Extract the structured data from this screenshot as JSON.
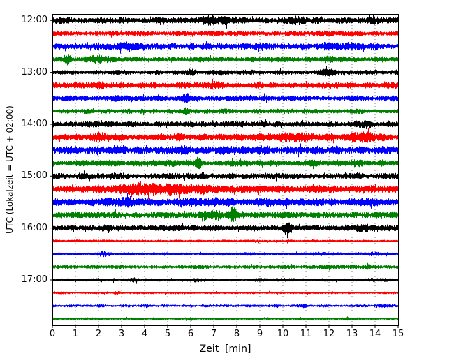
{
  "chart_data": {
    "type": "line",
    "subtype": "seismogram-dayplot-helicorder",
    "title": "",
    "xlabel": "Zeit  [min]",
    "ylabel": "UTC (Lokalzeit = UTC + 02:00)",
    "xlim": [
      0,
      15
    ],
    "minutes_per_trace": 15,
    "x_ticks": [
      "0",
      "1",
      "2",
      "3",
      "4",
      "5",
      "6",
      "7",
      "8",
      "9",
      "10",
      "11",
      "12",
      "13",
      "14",
      "15"
    ],
    "grid": {
      "vertical": "dotted",
      "every_minute": true
    },
    "legend": "none",
    "color_cycle": [
      "#000000",
      "#ff0000",
      "#0000ff",
      "#008000"
    ],
    "hour_tick_labels": [
      "12:00",
      "13:00",
      "14:00",
      "15:00",
      "16:00",
      "17:00"
    ],
    "traces": [
      {
        "start": "12:00",
        "label": "12:00",
        "color": "#000000",
        "amp": 0.5,
        "bursts": [
          [
            7,
            1.5,
            1.5
          ],
          [
            10.5,
            1,
            1.4
          ],
          [
            14,
            1,
            1.3
          ]
        ]
      },
      {
        "start": "12:15",
        "label": "",
        "color": "#ff0000",
        "amp": 0.38,
        "bursts": [
          [
            11.5,
            1,
            1.3
          ]
        ]
      },
      {
        "start": "12:30",
        "label": "",
        "color": "#0000ff",
        "amp": 0.5,
        "bursts": [
          [
            3.5,
            2,
            1.5
          ],
          [
            9,
            1.5,
            1.4
          ],
          [
            12.5,
            1.5,
            1.5
          ]
        ]
      },
      {
        "start": "12:45",
        "label": "",
        "color": "#008000",
        "amp": 0.42,
        "bursts": [
          [
            0.6,
            0.3,
            2.8
          ],
          [
            2,
            0.8,
            2.0
          ],
          [
            12,
            1,
            1.3
          ]
        ]
      },
      {
        "start": "13:00",
        "label": "13:00",
        "color": "#000000",
        "amp": 0.38,
        "bursts": [
          [
            6,
            0.5,
            1.5
          ],
          [
            12,
            0.8,
            2.2
          ]
        ]
      },
      {
        "start": "13:15",
        "label": "",
        "color": "#ff0000",
        "amp": 0.45,
        "bursts": [
          [
            1.8,
            0.8,
            1.6
          ],
          [
            5.5,
            0.5,
            1.5
          ],
          [
            7,
            0.8,
            1.5
          ]
        ]
      },
      {
        "start": "13:30",
        "label": "",
        "color": "#0000ff",
        "amp": 0.42,
        "bursts": [
          [
            5.8,
            0.4,
            1.9
          ],
          [
            2.5,
            1,
            1.3
          ]
        ]
      },
      {
        "start": "13:45",
        "label": "",
        "color": "#008000",
        "amp": 0.36,
        "bursts": [
          [
            5.8,
            0.3,
            2.2
          ],
          [
            7.5,
            0.4,
            1.6
          ]
        ]
      },
      {
        "start": "14:00",
        "label": "14:00",
        "color": "#000000",
        "amp": 0.45,
        "bursts": [
          [
            1.5,
            0.6,
            1.5
          ],
          [
            13.5,
            1,
            1.5
          ]
        ]
      },
      {
        "start": "14:15",
        "label": "",
        "color": "#ff0000",
        "amp": 0.55,
        "bursts": [
          [
            13.5,
            1.2,
            1.8
          ],
          [
            10.5,
            2,
            1.3
          ],
          [
            2,
            0.5,
            1.4
          ]
        ]
      },
      {
        "start": "14:30",
        "label": "",
        "color": "#0000ff",
        "amp": 0.62,
        "bursts": [
          [
            2.5,
            1,
            1.3
          ],
          [
            6,
            2,
            1.2
          ],
          [
            9.5,
            1,
            1.25
          ]
        ]
      },
      {
        "start": "14:45",
        "label": "",
        "color": "#008000",
        "amp": 0.5,
        "bursts": [
          [
            6.3,
            0.25,
            3.2
          ],
          [
            13,
            1.5,
            1.2
          ]
        ]
      },
      {
        "start": "15:00",
        "label": "15:00",
        "color": "#000000",
        "amp": 0.48,
        "bursts": [
          [
            6.5,
            0.3,
            2.0
          ],
          [
            1.5,
            1,
            1.2
          ]
        ]
      },
      {
        "start": "15:15",
        "label": "",
        "color": "#ff0000",
        "amp": 0.6,
        "bursts": [
          [
            4.5,
            3,
            1.8
          ],
          [
            6.5,
            1,
            1.6
          ]
        ]
      },
      {
        "start": "15:30",
        "label": "",
        "color": "#0000ff",
        "amp": 0.6,
        "bursts": [
          [
            3,
            1.5,
            1.4
          ],
          [
            6.5,
            2,
            1.3
          ],
          [
            9.5,
            1,
            1.2
          ]
        ]
      },
      {
        "start": "15:45",
        "label": "",
        "color": "#008000",
        "amp": 0.52,
        "bursts": [
          [
            7.8,
            0.3,
            2.6
          ],
          [
            7,
            1.5,
            1.4
          ],
          [
            10,
            1,
            1.2
          ]
        ]
      },
      {
        "start": "16:00",
        "label": "16:00",
        "color": "#000000",
        "amp": 0.5,
        "bursts": [
          [
            10.2,
            0.35,
            3.0
          ],
          [
            13.5,
            1,
            1.4
          ]
        ]
      },
      {
        "start": "16:15",
        "label": "",
        "color": "#ff0000",
        "amp": 0.2,
        "bursts": [
          [
            7.5,
            0.5,
            1.4
          ]
        ]
      },
      {
        "start": "16:30",
        "label": "",
        "color": "#0000ff",
        "amp": 0.25,
        "bursts": [
          [
            2.2,
            0.5,
            1.8
          ],
          [
            11.5,
            0.8,
            1.5
          ],
          [
            14,
            0.5,
            1.4
          ]
        ]
      },
      {
        "start": "16:45",
        "label": "",
        "color": "#008000",
        "amp": 0.3,
        "bursts": [
          [
            11.8,
            0.5,
            1.6
          ],
          [
            13.8,
            0.4,
            1.5
          ],
          [
            0.5,
            0.5,
            1.4
          ]
        ]
      },
      {
        "start": "17:00",
        "label": "17:00",
        "color": "#000000",
        "amp": 0.26,
        "bursts": [
          [
            3.5,
            0.3,
            1.8
          ],
          [
            6.2,
            0.3,
            1.7
          ],
          [
            10,
            0.3,
            1.4
          ]
        ]
      },
      {
        "start": "17:15",
        "label": "",
        "color": "#ff0000",
        "amp": 0.18,
        "bursts": [
          [
            2.8,
            0.3,
            1.8
          ]
        ]
      },
      {
        "start": "17:30",
        "label": "",
        "color": "#0000ff",
        "amp": 0.22,
        "bursts": [
          [
            10.8,
            0.4,
            1.8
          ],
          [
            14.3,
            0.5,
            1.6
          ],
          [
            8.5,
            0.3,
            1.5
          ]
        ]
      },
      {
        "start": "17:45",
        "label": "",
        "color": "#008000",
        "amp": 0.2,
        "bursts": [
          [
            12.8,
            0.4,
            1.8
          ],
          [
            6,
            0.3,
            1.4
          ]
        ]
      }
    ]
  }
}
